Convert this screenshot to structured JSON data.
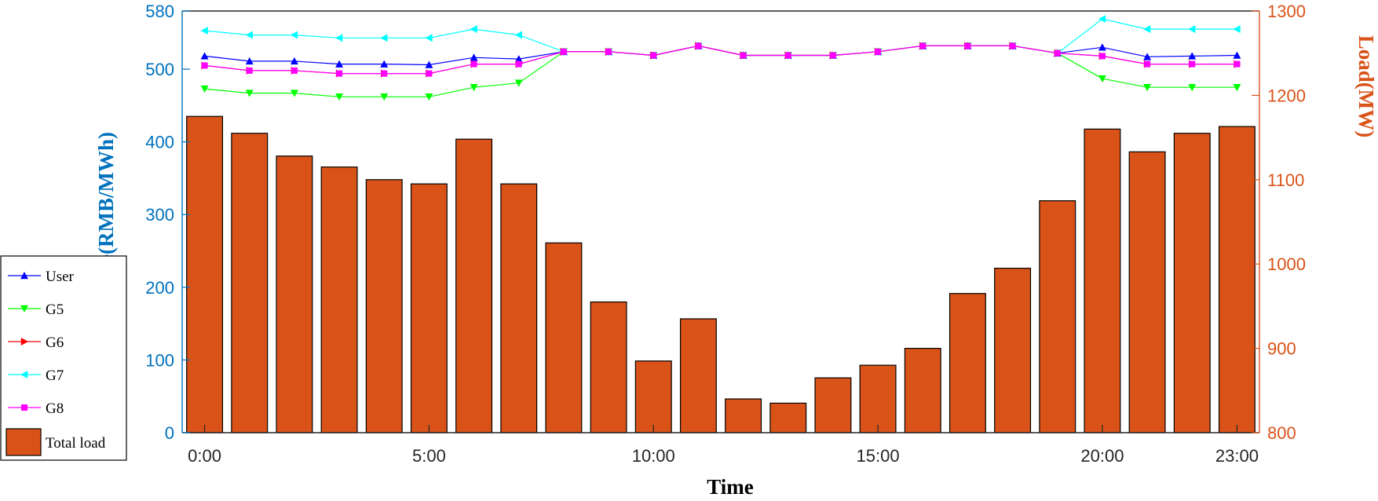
{
  "chart_data": {
    "type": "bar+line",
    "x": [
      "0:00",
      "1:00",
      "2:00",
      "3:00",
      "4:00",
      "5:00",
      "6:00",
      "7:00",
      "8:00",
      "9:00",
      "10:00",
      "11:00",
      "12:00",
      "13:00",
      "14:00",
      "15:00",
      "16:00",
      "17:00",
      "18:00",
      "19:00",
      "20:00",
      "21:00",
      "22:00",
      "23:00"
    ],
    "xticks": [
      "0:00",
      "5:00",
      "10:00",
      "15:00",
      "20:00",
      "23:00"
    ],
    "xlabel": "Time",
    "ylabel_left": "Price(RMB/MWh)",
    "ylabel_right": "Load(MW)",
    "ylim_left": [
      0,
      580
    ],
    "ylim_right": [
      800,
      1300
    ],
    "yticks_left": [
      0,
      100,
      200,
      300,
      400,
      500,
      580
    ],
    "yticks_right": [
      800,
      900,
      1000,
      1100,
      1200,
      1300
    ],
    "colors": {
      "left_axis": "#0072BD",
      "right_axis": "#D95319",
      "bar_fill": "#D95319",
      "bar_edge": "#000000"
    },
    "bars": {
      "name": "Total load",
      "axis": "right",
      "values": [
        1175,
        1155,
        1128,
        1115,
        1100,
        1095,
        1148,
        1095,
        1025,
        955,
        885,
        935,
        840,
        835,
        865,
        880,
        900,
        965,
        995,
        1075,
        1160,
        1133,
        1155,
        1163
      ]
    },
    "series": [
      {
        "name": "User",
        "marker": "triangle-up",
        "color": "#0000FF",
        "values": [
          518,
          511,
          511,
          507,
          507,
          506,
          516,
          514,
          524,
          524,
          519,
          532,
          519,
          519,
          519,
          524,
          532,
          532,
          532,
          522,
          530,
          517,
          518,
          519
        ]
      },
      {
        "name": "G5",
        "marker": "triangle-down",
        "color": "#00FF00",
        "values": [
          473,
          467,
          467,
          462,
          462,
          462,
          475,
          481,
          524,
          524,
          519,
          532,
          519,
          519,
          519,
          524,
          532,
          532,
          532,
          522,
          487,
          475,
          475,
          475
        ]
      },
      {
        "name": "G6",
        "marker": "triangle-right",
        "color": "#FF0000",
        "values": [
          505,
          498,
          498,
          494,
          494,
          494,
          507,
          507,
          524,
          524,
          519,
          532,
          519,
          519,
          519,
          524,
          532,
          532,
          532,
          522,
          518,
          507,
          507,
          507
        ]
      },
      {
        "name": "G7",
        "marker": "triangle-left",
        "color": "#00FFFF",
        "values": [
          553,
          547,
          547,
          543,
          543,
          543,
          555,
          547,
          524,
          524,
          519,
          532,
          519,
          519,
          519,
          524,
          532,
          532,
          532,
          522,
          569,
          555,
          555,
          555
        ]
      },
      {
        "name": "G8",
        "marker": "square",
        "color": "#FF00FF",
        "values": [
          505,
          498,
          498,
          494,
          494,
          494,
          507,
          507,
          524,
          524,
          519,
          532,
          519,
          519,
          519,
          524,
          532,
          532,
          532,
          522,
          518,
          507,
          507,
          507
        ]
      }
    ],
    "legend": {
      "placement": "left",
      "entries": [
        "User",
        "G5",
        "G6",
        "G7",
        "G8",
        "Total load"
      ]
    },
    "grid": false
  }
}
